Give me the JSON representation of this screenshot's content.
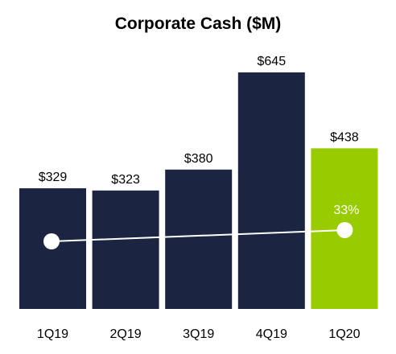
{
  "chart_data": {
    "type": "bar",
    "title": "Corporate Cash ($M)",
    "categories": [
      "1Q19",
      "2Q19",
      "3Q19",
      "4Q19",
      "1Q20"
    ],
    "values": [
      329,
      323,
      380,
      645,
      438
    ],
    "value_labels": [
      "$329",
      "$323",
      "$380",
      "$645",
      "$438"
    ],
    "bar_colors": [
      "#1b2541",
      "#1b2541",
      "#1b2541",
      "#1b2541",
      "#99cc00"
    ],
    "overlay_line": {
      "from_category": "1Q19",
      "to_category": "1Q20",
      "label": "33%",
      "color": "#ffffff"
    },
    "ylim": [
      0,
      700
    ],
    "grid": false,
    "legend": "none",
    "xlabel": "",
    "ylabel": ""
  }
}
